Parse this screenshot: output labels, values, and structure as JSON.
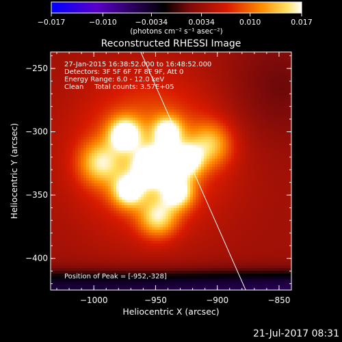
{
  "chart_data": {
    "type": "heatmap",
    "title": "Reconstructed RHESSI Image",
    "xlabel": "Heliocentric X (arcsec)",
    "ylabel": "Heliocentric Y (arcsec)",
    "xlim": [
      -1035,
      -840
    ],
    "ylim": [
      -425,
      -237
    ],
    "x_ticks": [
      {
        "value": -1000,
        "label": "−1000"
      },
      {
        "value": -950,
        "label": "−950"
      },
      {
        "value": -900,
        "label": "−900"
      },
      {
        "value": -850,
        "label": "−850"
      }
    ],
    "y_ticks": [
      {
        "value": -250,
        "label": "−250"
      },
      {
        "value": -300,
        "label": "−300"
      },
      {
        "value": -350,
        "label": "−350"
      },
      {
        "value": -400,
        "label": "−400"
      }
    ],
    "colorbar": {
      "range": [
        -0.017,
        0.017
      ],
      "ticks": [
        {
          "value": -0.017,
          "label": "−0.017"
        },
        {
          "value": -0.01,
          "label": "−0.010"
        },
        {
          "value": -0.0034,
          "label": "−0.0034"
        },
        {
          "value": 0.0034,
          "label": "0.0034"
        },
        {
          "value": 0.01,
          "label": "0.010"
        },
        {
          "value": 0.017,
          "label": "0.017"
        }
      ],
      "unit_label": "(photons cm⁻² s⁻¹ asec⁻²)",
      "colors": [
        "#0000ff",
        "#5a00c8",
        "#000000",
        "#7a0a0a",
        "#d81a00",
        "#ff8c00",
        "#ffe060",
        "#ffffff"
      ]
    },
    "annotations": [
      "27-Jan-2015 16:38:52.000 to 16:48:52.000",
      "Detectors: 3F 5F 6F 7F 8F 9F, Att 0",
      "Energy Range: 6.0 - 12.0 keV",
      "Clean     Total counts: 3.57E+05"
    ],
    "peak_label": "Position of Peak = [-952,-328]",
    "peak": [
      -952,
      -328
    ],
    "limb_line": [
      [
        -962,
        -237
      ],
      [
        -877,
        -425
      ]
    ],
    "sources": [
      {
        "x": -952,
        "y": -328,
        "amp": 0.017,
        "sigma": 10
      },
      {
        "x": -975,
        "y": -302,
        "amp": 0.012,
        "sigma": 9
      },
      {
        "x": -940,
        "y": -300,
        "amp": 0.011,
        "sigma": 8
      },
      {
        "x": -925,
        "y": -323,
        "amp": 0.012,
        "sigma": 9
      },
      {
        "x": -972,
        "y": -347,
        "amp": 0.011,
        "sigma": 9
      },
      {
        "x": -932,
        "y": -348,
        "amp": 0.011,
        "sigma": 9
      },
      {
        "x": -948,
        "y": -368,
        "amp": 0.009,
        "sigma": 11
      },
      {
        "x": -995,
        "y": -325,
        "amp": 0.008,
        "sigma": 12
      },
      {
        "x": -905,
        "y": -310,
        "amp": 0.0075,
        "sigma": 12
      },
      {
        "x": -955,
        "y": -318,
        "amp": 0.0075,
        "sigma": 40
      }
    ],
    "background": 0.0038,
    "lower_dip": {
      "y_center": -412,
      "depth": 0.0085,
      "width": 16,
      "x_slope": 0.00012
    }
  },
  "timestamp": "21-Jul-2017 08:31"
}
